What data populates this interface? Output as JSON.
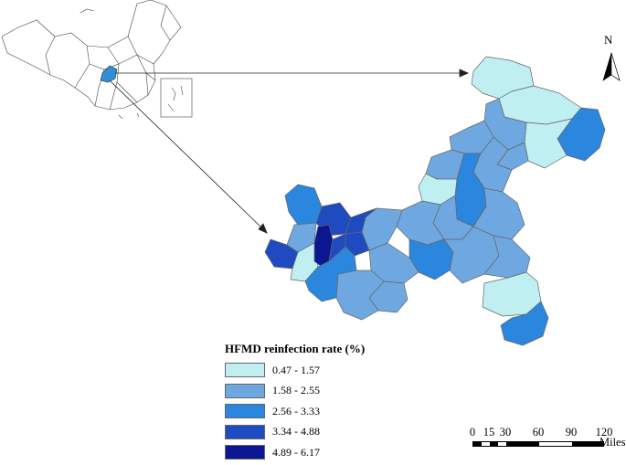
{
  "legend": {
    "title": "HFMD reinfection rate (%)",
    "classes": [
      {
        "label": "0.47 - 1.57",
        "color": "#bfeff1"
      },
      {
        "label": "1.58 - 2.55",
        "color": "#6fa8e0"
      },
      {
        "label": "2.56 - 3.33",
        "color": "#2b86de"
      },
      {
        "label": "3.34 - 4.88",
        "color": "#1f4bc0"
      },
      {
        "label": "4.89 - 6.17",
        "color": "#0a1790"
      }
    ]
  },
  "scale_bar": {
    "ticks": [
      "0",
      "15",
      "30",
      "60",
      "90",
      "120"
    ],
    "unit": "Miles"
  },
  "north_arrow": {
    "letter": "N"
  },
  "colors": {
    "highlight_region": "#2f8fd6",
    "outline": "#555555"
  }
}
